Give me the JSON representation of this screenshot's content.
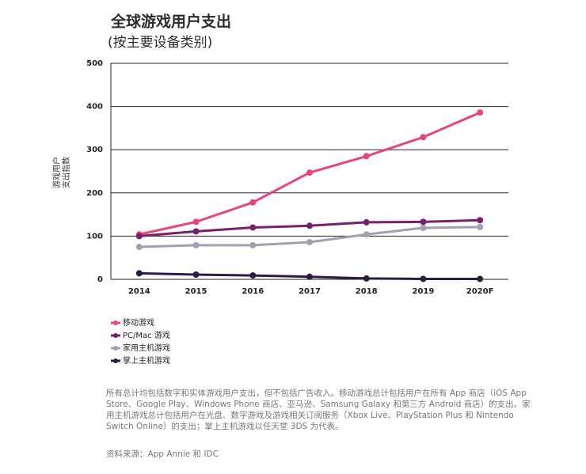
{
  "chart_data": {
    "type": "line",
    "title": "全球游戏用户支出",
    "subtitle": "(按主要设备类别)",
    "y_label": [
      "游戏用户",
      "支出指数"
    ],
    "categories": [
      "2014",
      "2015",
      "2016",
      "2017",
      "2018",
      "2019",
      "2020F"
    ],
    "series": [
      {
        "name": "移动游戏",
        "color": "#e8457a",
        "values": [
          104,
          133,
          178,
          247,
          285,
          329,
          386
        ]
      },
      {
        "name": "PC/Mac 游戏",
        "color": "#7b1f6a",
        "values": [
          100,
          111,
          120,
          124,
          132,
          133,
          137
        ]
      },
      {
        "name": "家用主机游戏",
        "color": "#9ea1b6",
        "values": [
          75,
          79,
          79,
          86,
          104,
          119,
          121
        ]
      },
      {
        "name": "掌上主机游戏",
        "color": "#2d1a47",
        "values": [
          14,
          11,
          9,
          6,
          2,
          1,
          1
        ]
      }
    ],
    "ylim": [
      0,
      500
    ],
    "yticks": [
      0,
      100,
      200,
      300,
      400,
      500
    ],
    "grid": true,
    "note": "所有总计均包括数字和实体游戏用户支出，但不包括广告收入。移动游戏总计包括用户在所有 App 商店（iOS App Store、Google Play、Windows Phone 商店、亚马逊、Samsung Galaxy 和第三方 Android 商店）的支出。家用主机游戏总计包括用户在光盘、数字游戏及游戏相关订阅服务（Xbox Live、PlayStation Plus 和 Nintendo Switch Online）的支出；掌上主机游戏以任天堂 3DS 为代表。",
    "source": "资料来源：App Annie 和 IDC"
  }
}
